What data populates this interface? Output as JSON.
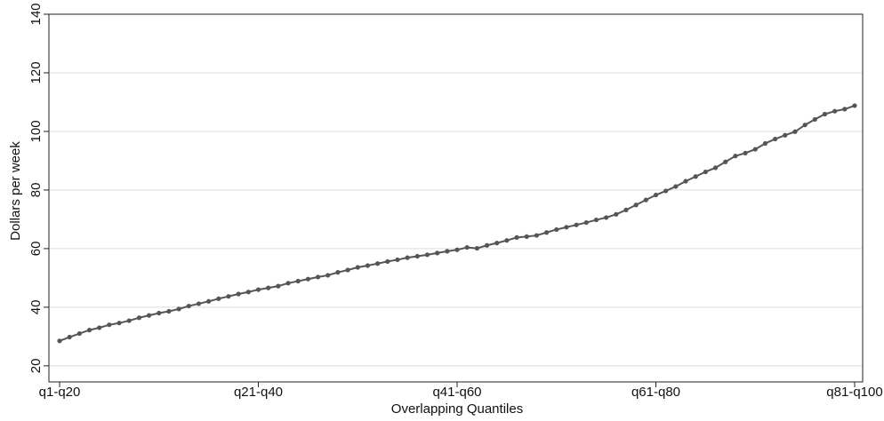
{
  "chart_data": {
    "type": "line",
    "x_label": "Overlapping Quantiles",
    "y_label": "Dollars per week",
    "categories": [
      "q1-q20",
      null,
      null,
      null,
      null,
      null,
      null,
      null,
      null,
      null,
      null,
      null,
      null,
      null,
      null,
      null,
      null,
      null,
      null,
      null,
      "q21-q40",
      null,
      null,
      null,
      null,
      null,
      null,
      null,
      null,
      null,
      null,
      null,
      null,
      null,
      null,
      null,
      null,
      null,
      null,
      null,
      "q41-q60",
      null,
      null,
      null,
      null,
      null,
      null,
      null,
      null,
      null,
      null,
      null,
      null,
      null,
      null,
      null,
      null,
      null,
      null,
      null,
      "q61-q80",
      null,
      null,
      null,
      null,
      null,
      null,
      null,
      null,
      null,
      null,
      null,
      null,
      null,
      null,
      null,
      null,
      null,
      null,
      null,
      "q81-q100"
    ],
    "values": [
      28.5,
      29.8,
      31,
      32.2,
      33,
      34,
      34.6,
      35.4,
      36.4,
      37.2,
      38,
      38.6,
      39.4,
      40.4,
      41.2,
      42,
      42.9,
      43.7,
      44.5,
      45.2,
      46,
      46.6,
      47.2,
      48.2,
      48.9,
      49.6,
      50.3,
      50.9,
      51.9,
      52.7,
      53.6,
      54.2,
      54.9,
      55.6,
      56.2,
      56.9,
      57.4,
      57.9,
      58.5,
      59.1,
      59.6,
      60.4,
      60.1,
      61.1,
      61.9,
      62.8,
      63.8,
      64.1,
      64.5,
      65.5,
      66.5,
      67.3,
      68.1,
      68.9,
      69.8,
      70.6,
      71.7,
      73.2,
      74.9,
      76.6,
      78.3,
      79.7,
      81.2,
      83,
      84.6,
      86.2,
      87.6,
      89.6,
      91.6,
      92.6,
      93.9,
      95.9,
      97.4,
      98.7,
      99.9,
      102.2,
      104.1,
      105.9,
      106.9,
      107.6,
      108.8
    ],
    "color": "#555555",
    "ylim": [
      14.5,
      140
    ],
    "yticks": [
      20,
      40,
      60,
      80,
      100,
      120,
      140
    ],
    "grid": true
  }
}
